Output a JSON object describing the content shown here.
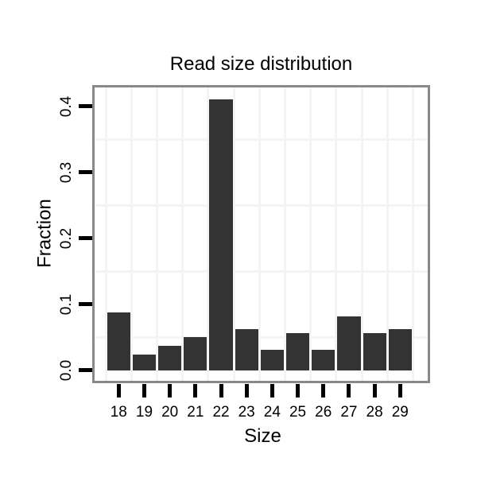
{
  "chart_data": {
    "type": "bar",
    "title": "Read size distribution",
    "xlabel": "Size",
    "ylabel": "Fraction",
    "categories": [
      "18",
      "19",
      "20",
      "21",
      "22",
      "23",
      "24",
      "25",
      "26",
      "27",
      "28",
      "29"
    ],
    "values": [
      0.088,
      0.024,
      0.037,
      0.05,
      0.41,
      0.062,
      0.031,
      0.056,
      0.031,
      0.082,
      0.056,
      0.062
    ],
    "ylim": [
      -0.017,
      0.429
    ],
    "yticks": [
      0.0,
      0.1,
      0.2,
      0.3,
      0.4
    ],
    "ytick_labels": [
      "0.0",
      "0.1",
      "0.2",
      "0.3",
      "0.4"
    ],
    "minor_gridlines_y": [
      0.05,
      0.15,
      0.25,
      0.35
    ],
    "grid": "minor gridlines only; vertical minors between each category; white panel background",
    "legend": "none",
    "colors": {
      "bar": "#333333",
      "panel_border": "#898989",
      "gridline": "#f4f4f4",
      "tick": "#000000",
      "text": "#000000",
      "background": "#ffffff"
    }
  }
}
